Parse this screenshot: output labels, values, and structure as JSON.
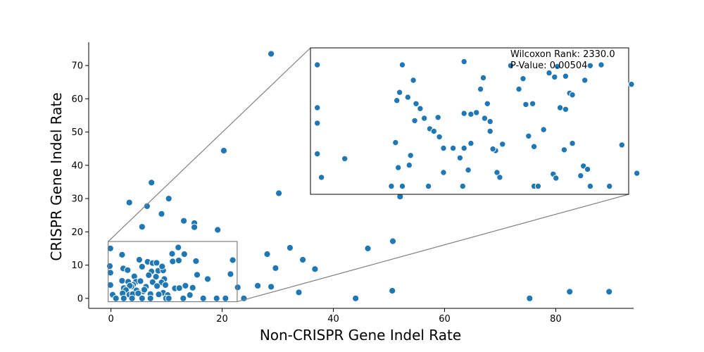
{
  "chart_data": {
    "type": "scatter",
    "title": "",
    "xlabel": "Non-CRISPR Gene Indel Rate",
    "ylabel": "CRISPR Gene Indel Rate",
    "xlim": [
      -4,
      94
    ],
    "ylim": [
      -3,
      77
    ],
    "xticks": [
      0,
      20,
      40,
      60,
      80
    ],
    "yticks": [
      0,
      10,
      20,
      30,
      40,
      50,
      60,
      70
    ],
    "grid": false,
    "legend": "none",
    "point_color": "#1f77b4",
    "points": [
      [
        28.8,
        73.5
      ],
      [
        20.3,
        44.4
      ],
      [
        7.3,
        34.8
      ],
      [
        30.2,
        31.6
      ],
      [
        10.4,
        30.0
      ],
      [
        3.3,
        28.8
      ],
      [
        6.5,
        27.7
      ],
      [
        9.1,
        25.4
      ],
      [
        13.1,
        23.3
      ],
      [
        15.0,
        22.6
      ],
      [
        15.0,
        21.4
      ],
      [
        5.6,
        21.5
      ],
      [
        19.2,
        20.6
      ],
      [
        -0.1,
        15.0
      ],
      [
        32.2,
        15.2
      ],
      [
        46.2,
        15.0
      ],
      [
        50.7,
        17.2
      ],
      [
        2.0,
        13.1
      ],
      [
        11.0,
        13.4
      ],
      [
        13.2,
        13.3
      ],
      [
        12.1,
        15.3
      ],
      [
        28.1,
        13.3
      ],
      [
        21.9,
        11.5
      ],
      [
        15.3,
        11.2
      ],
      [
        11.1,
        11.1
      ],
      [
        12.2,
        11.4
      ],
      [
        5.1,
        11.6
      ],
      [
        6.6,
        11.0
      ],
      [
        7.5,
        10.6
      ],
      [
        8.2,
        10.7
      ],
      [
        34.5,
        11.6
      ],
      [
        -0.2,
        9.7
      ],
      [
        -0.1,
        7.7
      ],
      [
        2.2,
        9.0
      ],
      [
        3.0,
        8.5
      ],
      [
        5.6,
        9.5
      ],
      [
        7.3,
        8.1
      ],
      [
        8.5,
        8.3
      ],
      [
        9.4,
        8.4
      ],
      [
        9.2,
        9.6
      ],
      [
        29.6,
        9.1
      ],
      [
        36.7,
        8.8
      ],
      [
        21.5,
        7.3
      ],
      [
        15.5,
        7.1
      ],
      [
        6.8,
        7.0
      ],
      [
        4.2,
        6.6
      ],
      [
        8.1,
        6.5
      ],
      [
        9.6,
        5.8
      ],
      [
        17.4,
        5.8
      ],
      [
        2.0,
        5.3
      ],
      [
        3.1,
        5.0
      ],
      [
        4.5,
        5.0
      ],
      [
        4.0,
        4.1
      ],
      [
        5.3,
        5.2
      ],
      [
        7.5,
        4.9
      ],
      [
        9.1,
        4.8
      ],
      [
        9.8,
        4.0
      ],
      [
        3.7,
        3.6
      ],
      [
        2.3,
        3.1
      ],
      [
        -0.1,
        4.0
      ],
      [
        3.4,
        3.8
      ],
      [
        6.3,
        3.5
      ],
      [
        8.3,
        3.7
      ],
      [
        13.4,
        3.8
      ],
      [
        14.7,
        3.2
      ],
      [
        11.5,
        3.0
      ],
      [
        12.3,
        3.1
      ],
      [
        22.8,
        3.3
      ],
      [
        26.4,
        3.8
      ],
      [
        28.8,
        3.5
      ],
      [
        2.7,
        2.5
      ],
      [
        4.6,
        2.4
      ],
      [
        5.8,
        2.1
      ],
      [
        6.0,
        2.6
      ],
      [
        9.4,
        1.7
      ],
      [
        0.3,
        1.1
      ],
      [
        2.1,
        1.5
      ],
      [
        3.3,
        1.1
      ],
      [
        3.9,
        1.3
      ],
      [
        4.9,
        1.5
      ],
      [
        7.1,
        1.3
      ],
      [
        8.6,
        1.2
      ],
      [
        10.2,
        1.0
      ],
      [
        14.2,
        1.0
      ],
      [
        33.8,
        1.8
      ],
      [
        50.6,
        2.3
      ],
      [
        82.5,
        2.0
      ],
      [
        89.6,
        2.0
      ],
      [
        0.9,
        0.0
      ],
      [
        2.3,
        0.0
      ],
      [
        3.8,
        0.0
      ],
      [
        5.6,
        0.0
      ],
      [
        7.1,
        0.0
      ],
      [
        9.9,
        0.0
      ],
      [
        10.4,
        0.0
      ],
      [
        13.0,
        0.0
      ],
      [
        16.6,
        0.0
      ],
      [
        19.0,
        0.0
      ],
      [
        20.6,
        0.0
      ],
      [
        23.9,
        0.0
      ],
      [
        44.0,
        0.0
      ],
      [
        75.3,
        0.0
      ],
      [
        52.0,
        30.6
      ]
    ],
    "zoom_region": {
      "xlim": [
        -0.5,
        22.7
      ],
      "ylim": [
        -1,
        17.1
      ]
    },
    "inset": {
      "xlim": [
        -0.5,
        22.7
      ],
      "ylim": [
        -1,
        17.1
      ],
      "points": [
        [
          0.0,
          15.0
        ],
        [
          0.0,
          9.7
        ],
        [
          0.0,
          7.8
        ],
        [
          0.0,
          4.0
        ],
        [
          0.3,
          1.1
        ],
        [
          6.0,
          11.6
        ],
        [
          6.2,
          15.0
        ],
        [
          6.6,
          11.0
        ],
        [
          7.0,
          13.1
        ],
        [
          7.2,
          10.2
        ],
        [
          5.8,
          10.6
        ],
        [
          5.7,
          5.4
        ],
        [
          5.9,
          2.3
        ],
        [
          6.7,
          2.6
        ],
        [
          7.1,
          8.1
        ],
        [
          7.5,
          9.6
        ],
        [
          7.8,
          8.4
        ],
        [
          8.2,
          7.1
        ],
        [
          8.5,
          6.8
        ],
        [
          8.8,
          8.5
        ],
        [
          8.9,
          6.1
        ],
        [
          9.2,
          4.7
        ],
        [
          9.9,
          4.7
        ],
        [
          10.7,
          9.0
        ],
        [
          11.2,
          8.9
        ],
        [
          11.6,
          9.1
        ],
        [
          12.2,
          8.4
        ],
        [
          12.4,
          10.2
        ],
        [
          12.6,
          6.8
        ],
        [
          13.0,
          4.4
        ],
        [
          13.5,
          5.2
        ],
        [
          13.1,
          1.7
        ],
        [
          13.3,
          1.1
        ],
        [
          10.7,
          15.4
        ],
        [
          11.9,
          12.0
        ],
        [
          12.1,
          13.4
        ],
        [
          12.6,
          8.0
        ],
        [
          12.8,
          4.6
        ],
        [
          14.1,
          14.9
        ],
        [
          14.7,
          12.0
        ],
        [
          15.0,
          13.3
        ],
        [
          15.2,
          10.1
        ],
        [
          15.7,
          10.2
        ],
        [
          15.4,
          6.2
        ],
        [
          16.5,
          7.0
        ],
        [
          16.9,
          14.0
        ],
        [
          17.5,
          14.8
        ],
        [
          17.3,
          13.5
        ],
        [
          17.7,
          9.7
        ],
        [
          18.1,
          9.5
        ],
        [
          18.0,
          4.5
        ],
        [
          18.4,
          11.5
        ],
        [
          19.5,
          13.1
        ],
        [
          19.9,
          14.9
        ],
        [
          20.7,
          15.0
        ],
        [
          19.4,
          2.5
        ],
        [
          19.7,
          2.1
        ],
        [
          19.2,
          1.3
        ],
        [
          19.9,
          0.0
        ],
        [
          17.2,
          1.5
        ],
        [
          17.4,
          1.0
        ],
        [
          11.2,
          5.3
        ],
        [
          9.2,
          1.7
        ],
        [
          10.4,
          3.5
        ],
        [
          22.2,
          5.1
        ],
        [
          21.3,
          0.0
        ],
        [
          23.3,
          1.6
        ],
        [
          22.9,
          12.6
        ],
        [
          18.6,
          11.3
        ],
        [
          18.1,
          13.6
        ],
        [
          15.8,
          0.0
        ],
        [
          16.1,
          0.0
        ],
        [
          6.2,
          0.0
        ],
        [
          5.4,
          0.0
        ],
        [
          2.0,
          3.4
        ],
        [
          6.8,
          3.8
        ],
        [
          10.7,
          4.7
        ],
        [
          11.0,
          2.0
        ],
        [
          8.1,
          0.0
        ],
        [
          10.6,
          0.0
        ],
        [
          15.8,
          4.9
        ],
        [
          18.6,
          5.3
        ]
      ]
    },
    "annotations": [
      "Wilcoxon Rank: 2330.0",
      "P-Value: 0.00504"
    ]
  }
}
